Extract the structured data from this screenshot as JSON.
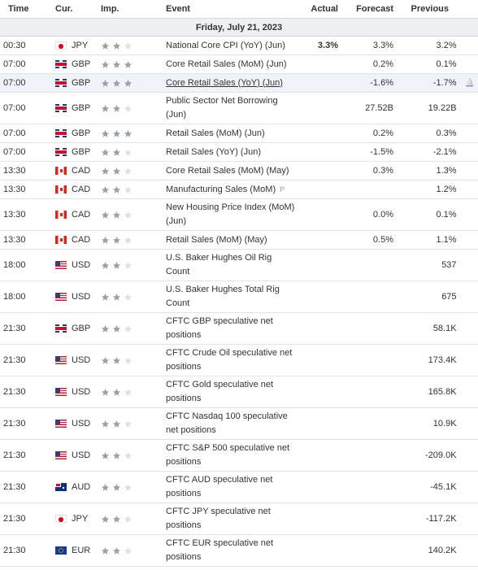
{
  "headers": {
    "time": "Time",
    "cur": "Cur.",
    "imp": "Imp.",
    "event": "Event",
    "actual": "Actual",
    "forecast": "Forecast",
    "previous": "Previous"
  },
  "date": "Friday, July 21, 2023",
  "colors": {
    "star_on": "#9aa0a6",
    "star_off": "#e0e0e0",
    "highlight": "#f0f3f8"
  },
  "rows": [
    {
      "time": "00:30",
      "cur": "JPY",
      "flag": "jp",
      "imp": 2,
      "event": "National Core CPI (YoY) (Jun)",
      "actual": "3.3%",
      "forecast": "3.3%",
      "previous": "3.2%"
    },
    {
      "time": "07:00",
      "cur": "GBP",
      "flag": "gb",
      "imp": 3,
      "event": "Core Retail Sales (MoM) (Jun)",
      "actual": "",
      "forecast": "0.2%",
      "previous": "0.1%"
    },
    {
      "time": "07:00",
      "cur": "GBP",
      "flag": "gb",
      "imp": 3,
      "event": "Core Retail Sales (YoY) (Jun)",
      "actual": "",
      "forecast": "-1.6%",
      "previous": "-1.7%",
      "highlight": true,
      "underline": true,
      "alert_icon": "bell-plus-icon"
    },
    {
      "time": "07:00",
      "cur": "GBP",
      "flag": "gb",
      "imp": 2,
      "event": "Public Sector Net Borrowing (Jun)",
      "actual": "",
      "forecast": "27.52B",
      "previous": "19.22B",
      "tall": true
    },
    {
      "time": "07:00",
      "cur": "GBP",
      "flag": "gb",
      "imp": 3,
      "event": "Retail Sales (MoM) (Jun)",
      "actual": "",
      "forecast": "0.2%",
      "previous": "0.3%"
    },
    {
      "time": "07:00",
      "cur": "GBP",
      "flag": "gb",
      "imp": 2,
      "event": "Retail Sales (YoY) (Jun)",
      "actual": "",
      "forecast": "-1.5%",
      "previous": "-2.1%"
    },
    {
      "time": "13:30",
      "cur": "CAD",
      "flag": "ca",
      "imp": 2,
      "event": "Core Retail Sales (MoM) (May)",
      "actual": "",
      "forecast": "0.3%",
      "previous": "1.3%"
    },
    {
      "time": "13:30",
      "cur": "CAD",
      "flag": "ca",
      "imp": 2,
      "event": "Manufacturing Sales (MoM)",
      "actual": "",
      "forecast": "",
      "previous": "1.2%",
      "preliminary": "P"
    },
    {
      "time": "13:30",
      "cur": "CAD",
      "flag": "ca",
      "imp": 2,
      "event": "New Housing Price Index (MoM) (Jun)",
      "actual": "",
      "forecast": "0.0%",
      "previous": "0.1%",
      "tall": true
    },
    {
      "time": "13:30",
      "cur": "CAD",
      "flag": "ca",
      "imp": 2,
      "event": "Retail Sales (MoM) (May)",
      "actual": "",
      "forecast": "0.5%",
      "previous": "1.1%"
    },
    {
      "time": "18:00",
      "cur": "USD",
      "flag": "us",
      "imp": 2,
      "event": "U.S. Baker Hughes Oil Rig Count",
      "actual": "",
      "forecast": "",
      "previous": "537",
      "tall": true
    },
    {
      "time": "18:00",
      "cur": "USD",
      "flag": "us",
      "imp": 2,
      "event": "U.S. Baker Hughes Total Rig Count",
      "actual": "",
      "forecast": "",
      "previous": "675",
      "tall": true
    },
    {
      "time": "21:30",
      "cur": "GBP",
      "flag": "gb",
      "imp": 2,
      "event": "CFTC GBP speculative net positions",
      "actual": "",
      "forecast": "",
      "previous": "58.1K",
      "tall": true
    },
    {
      "time": "21:30",
      "cur": "USD",
      "flag": "us",
      "imp": 2,
      "event": "CFTC Crude Oil speculative net positions",
      "actual": "",
      "forecast": "",
      "previous": "173.4K",
      "tall": true
    },
    {
      "time": "21:30",
      "cur": "USD",
      "flag": "us",
      "imp": 2,
      "event": "CFTC Gold speculative net positions",
      "actual": "",
      "forecast": "",
      "previous": "165.8K",
      "tall": true
    },
    {
      "time": "21:30",
      "cur": "USD",
      "flag": "us",
      "imp": 2,
      "event": "CFTC Nasdaq 100 speculative net positions",
      "actual": "",
      "forecast": "",
      "previous": "10.9K",
      "tall": true
    },
    {
      "time": "21:30",
      "cur": "USD",
      "flag": "us",
      "imp": 2,
      "event": "CFTC S&P 500 speculative net positions",
      "actual": "",
      "forecast": "",
      "previous": "-209.0K",
      "tall": true
    },
    {
      "time": "21:30",
      "cur": "AUD",
      "flag": "au",
      "imp": 2,
      "event": "CFTC AUD speculative net positions",
      "actual": "",
      "forecast": "",
      "previous": "-45.1K",
      "tall": true
    },
    {
      "time": "21:30",
      "cur": "JPY",
      "flag": "jp",
      "imp": 2,
      "event": "CFTC JPY speculative net positions",
      "actual": "",
      "forecast": "",
      "previous": "-117.2K",
      "tall": true
    },
    {
      "time": "21:30",
      "cur": "EUR",
      "flag": "eu",
      "imp": 2,
      "event": "CFTC EUR speculative net positions",
      "actual": "",
      "forecast": "",
      "previous": "140.2K",
      "tall": true
    }
  ]
}
